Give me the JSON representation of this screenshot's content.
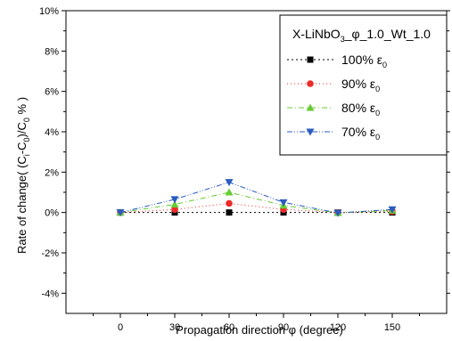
{
  "chart_data": {
    "type": "line",
    "title": "",
    "xlabel": "Propagation direction φ (degree)",
    "ylabel": "Rate of change( (Cᵢ-C₀)/C₀ % )",
    "ylabel_parts": {
      "prefix": "Rate of change( (C",
      "sub_i": "i",
      "mid": "-C",
      "sub_0a": "0",
      "slash": ")/C",
      "sub_0b": "0",
      "suffix": " % )"
    },
    "xlim": [
      -30,
      180
    ],
    "ylim": [
      -5,
      10
    ],
    "x_ticks": [
      0,
      30,
      60,
      90,
      120,
      150
    ],
    "x_tick_labels": [
      "0",
      "30",
      "60",
      "90",
      "120",
      "150"
    ],
    "y_ticks": [
      -4,
      -2,
      0,
      2,
      4,
      6,
      8,
      10
    ],
    "y_tick_labels": [
      "-4%",
      "-2%",
      "0%",
      "2%",
      "4%",
      "6%",
      "8%",
      "10%"
    ],
    "x": [
      0,
      30,
      60,
      90,
      120,
      150
    ],
    "legend_title": "X-LiNbO",
    "legend_title_parts": {
      "a": "X-LiNbO",
      "sub": "3",
      "b": "_φ_1.0_Wt_1.0"
    },
    "legend_position": "top-right",
    "grid": false,
    "series": [
      {
        "name": "100% ε",
        "sub": "0",
        "color": "#000000",
        "marker": "square",
        "dash": "2,3",
        "values": [
          0.0,
          0.0,
          0.0,
          0.0,
          0.0,
          0.0
        ]
      },
      {
        "name": "90% ε",
        "sub": "0",
        "color": "#ee2a2a",
        "marker": "circle",
        "dash": "1,3",
        "values": [
          0.0,
          0.15,
          0.45,
          0.15,
          0.0,
          0.05
        ]
      },
      {
        "name": "80% ε",
        "sub": "0",
        "color": "#66cc33",
        "marker": "triangle-up",
        "dash": "6,3,1,3",
        "values": [
          0.0,
          0.4,
          1.0,
          0.35,
          -0.02,
          0.1
        ]
      },
      {
        "name": "70% ε",
        "sub": "0",
        "color": "#2a5bbf",
        "marker": "triangle-down",
        "dash": "6,2,1,2,1,2",
        "values": [
          0.0,
          0.65,
          1.5,
          0.5,
          -0.02,
          0.15
        ]
      }
    ]
  }
}
